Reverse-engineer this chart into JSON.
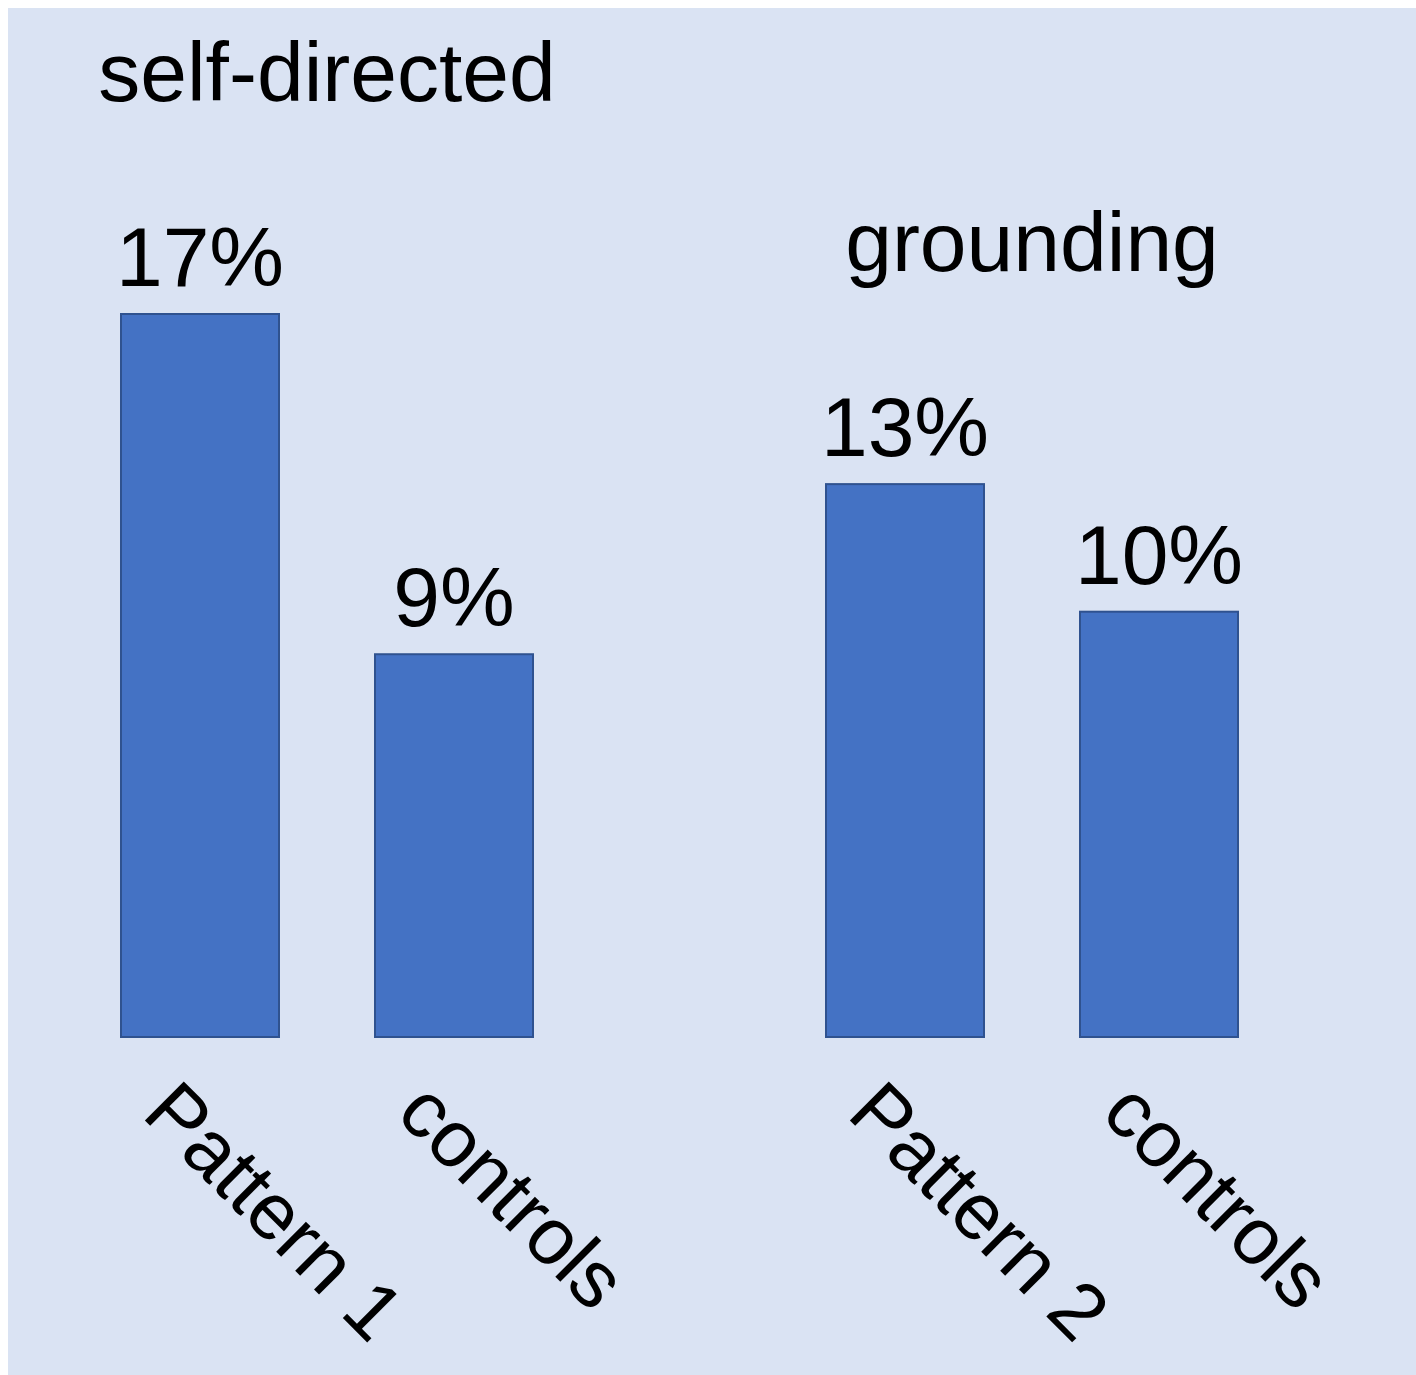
{
  "chart_data": [
    {
      "type": "bar",
      "title": "self-directed",
      "categories": [
        "Pattern 1",
        "controls"
      ],
      "values": [
        17,
        9
      ],
      "value_labels": [
        "17%",
        "9%"
      ],
      "color": "#4472c4"
    },
    {
      "type": "bar",
      "title": "grounding",
      "categories": [
        "Pattern 2",
        "controls"
      ],
      "values": [
        13,
        10
      ],
      "value_labels": [
        "13%",
        "10%"
      ],
      "color": "#4472c4"
    }
  ]
}
